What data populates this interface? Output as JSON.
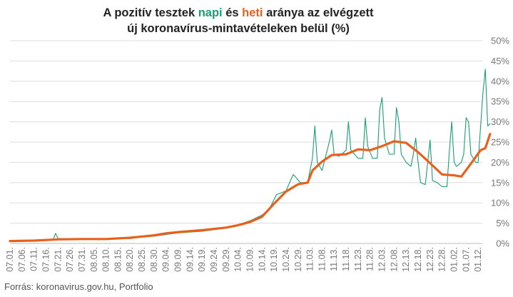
{
  "title": {
    "line1_prefix": "A pozitív tesztek ",
    "line1_napi": "napi",
    "line1_mid": " és ",
    "line1_heti": "heti",
    "line1_suffix": " aránya az elvégzett",
    "line2": "új koronavírus-mintavételeken belül (%)"
  },
  "source": "Forrás: koronavirus.gov.hu, Portfolio",
  "colors": {
    "napi": "#1a9e76",
    "heti": "#e8601c",
    "grid": "#dddddd",
    "tick_text": "#777777"
  },
  "chart_data": {
    "type": "line",
    "xlabel": "",
    "ylabel": "",
    "y_axis_position": "right",
    "ylim": [
      0,
      50
    ],
    "y_ticks": [
      "0%",
      "5%",
      "10%",
      "15%",
      "20%",
      "25%",
      "30%",
      "35%",
      "40%",
      "45%",
      "50%"
    ],
    "x_tick_labels": [
      "07.01.",
      "07.06.",
      "07.11.",
      "07.16.",
      "07.21.",
      "07.26.",
      "07.31.",
      "08.05.",
      "08.10.",
      "08.15.",
      "08.20.",
      "08.25.",
      "08.30.",
      "09.04.",
      "09.09.",
      "09.14.",
      "09.19.",
      "09.24.",
      "09.29.",
      "10.04.",
      "10.09.",
      "10.14.",
      "10.19.",
      "10.24.",
      "10.29.",
      "11.03.",
      "11.08.",
      "11.13.",
      "11.18.",
      "11.23.",
      "11.28.",
      "12.03.",
      "12.08.",
      "12.13.",
      "12.18.",
      "12.23.",
      "12.28.",
      "01.02.",
      "01.07.",
      "01.12."
    ],
    "grid": "horizontal",
    "series": [
      {
        "name": "napi",
        "color": "#1a9e76",
        "points": [
          [
            0,
            0.6
          ],
          [
            5,
            0.8
          ],
          [
            10,
            0.7
          ],
          [
            15,
            0.9
          ],
          [
            18,
            1.0
          ],
          [
            19,
            2.5
          ],
          [
            20,
            1.2
          ],
          [
            25,
            1.2
          ],
          [
            30,
            1.0
          ],
          [
            35,
            1.2
          ],
          [
            40,
            1.0
          ],
          [
            45,
            1.2
          ],
          [
            50,
            1.2
          ],
          [
            55,
            1.6
          ],
          [
            60,
            1.8
          ],
          [
            65,
            2.2
          ],
          [
            70,
            2.6
          ],
          [
            75,
            2.8
          ],
          [
            80,
            3.0
          ],
          [
            85,
            3.4
          ],
          [
            90,
            3.8
          ],
          [
            95,
            4.6
          ],
          [
            100,
            5.6
          ],
          [
            105,
            7.0
          ],
          [
            108,
            8.5
          ],
          [
            111,
            12.0
          ],
          [
            115,
            13.0
          ],
          [
            118,
            17.0
          ],
          [
            121,
            15.0
          ],
          [
            124,
            15.0
          ],
          [
            126,
            21.0
          ],
          [
            127,
            29.0
          ],
          [
            128,
            20.0
          ],
          [
            130,
            18.0
          ],
          [
            133,
            25.0
          ],
          [
            134,
            28.0
          ],
          [
            135,
            22.0
          ],
          [
            137,
            21.5
          ],
          [
            140,
            23.0
          ],
          [
            141,
            30.0
          ],
          [
            142,
            23.0
          ],
          [
            145,
            21.0
          ],
          [
            147,
            21.0
          ],
          [
            148,
            31.0
          ],
          [
            149,
            24.0
          ],
          [
            151,
            21.0
          ],
          [
            153,
            21.0
          ],
          [
            154,
            33.0
          ],
          [
            155,
            36.0
          ],
          [
            156,
            26.0
          ],
          [
            158,
            22.0
          ],
          [
            160,
            22.0
          ],
          [
            161,
            33.5
          ],
          [
            162,
            30.0
          ],
          [
            163,
            22.0
          ],
          [
            165,
            20.0
          ],
          [
            167,
            19.0
          ],
          [
            168,
            22.0
          ],
          [
            169,
            26.0
          ],
          [
            170,
            20.0
          ],
          [
            171,
            15.0
          ],
          [
            173,
            14.5
          ],
          [
            175,
            25.5
          ],
          [
            176,
            15.5
          ],
          [
            178,
            15.0
          ],
          [
            180,
            14.0
          ],
          [
            182,
            14.0
          ],
          [
            183,
            22.5
          ],
          [
            184,
            30.0
          ],
          [
            185,
            20.0
          ],
          [
            186,
            19.0
          ],
          [
            188,
            20.0
          ],
          [
            189,
            22.0
          ],
          [
            190,
            31.0
          ],
          [
            191,
            30.0
          ],
          [
            192,
            22.0
          ],
          [
            194,
            20.0
          ],
          [
            195,
            20.0
          ],
          [
            197,
            37.0
          ],
          [
            198,
            43.0
          ],
          [
            199,
            29.0
          ],
          [
            200,
            29.5
          ]
        ]
      },
      {
        "name": "heti",
        "color": "#e8601c",
        "points": [
          [
            0,
            0.6
          ],
          [
            10,
            0.7
          ],
          [
            20,
            1.0
          ],
          [
            30,
            1.1
          ],
          [
            40,
            1.1
          ],
          [
            50,
            1.4
          ],
          [
            55,
            1.7
          ],
          [
            60,
            2.0
          ],
          [
            65,
            2.5
          ],
          [
            70,
            2.8
          ],
          [
            80,
            3.3
          ],
          [
            90,
            3.9
          ],
          [
            95,
            4.5
          ],
          [
            100,
            5.3
          ],
          [
            105,
            6.6
          ],
          [
            110,
            9.8
          ],
          [
            115,
            12.8
          ],
          [
            120,
            14.6
          ],
          [
            124,
            15.0
          ],
          [
            126,
            18.0
          ],
          [
            130,
            20.2
          ],
          [
            134,
            21.8
          ],
          [
            140,
            22.0
          ],
          [
            145,
            23.2
          ],
          [
            150,
            23.0
          ],
          [
            155,
            24.0
          ],
          [
            160,
            25.2
          ],
          [
            165,
            24.8
          ],
          [
            170,
            22.5
          ],
          [
            175,
            19.8
          ],
          [
            180,
            17.0
          ],
          [
            185,
            16.8
          ],
          [
            188,
            16.5
          ],
          [
            193,
            20.5
          ],
          [
            196,
            23.0
          ],
          [
            198,
            23.5
          ],
          [
            200,
            27.0
          ]
        ]
      }
    ]
  }
}
